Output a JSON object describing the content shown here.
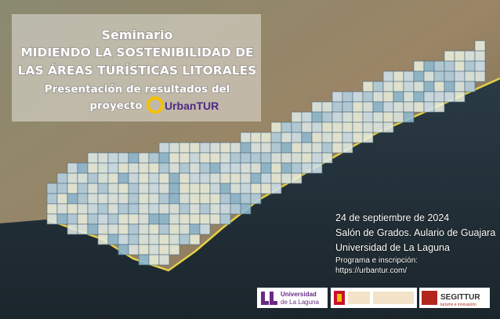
{
  "header": {
    "kicker": "Seminario",
    "title_lines": [
      "MIDIENDO LA SOSTENIBILIDAD DE",
      "LAS ÁREAS TURÍSTICAS LITORALES"
    ],
    "subtitle_lines": [
      "Presentación de resultados del",
      "proyecto"
    ],
    "logo": "UrbanTUR"
  },
  "event": {
    "date": "24 de septiembre de 2024",
    "venue": "Salón de Grados. Aulario de Guajara",
    "institution": "Universidad de La Laguna",
    "info_label": "Programa e inscripción:",
    "url": "https://urbantur.com/"
  },
  "sponsors": {
    "ull": [
      "Universidad",
      "de La Laguna"
    ],
    "segittur": [
      "SEGITTUR",
      "turismo e innovación"
    ]
  }
}
